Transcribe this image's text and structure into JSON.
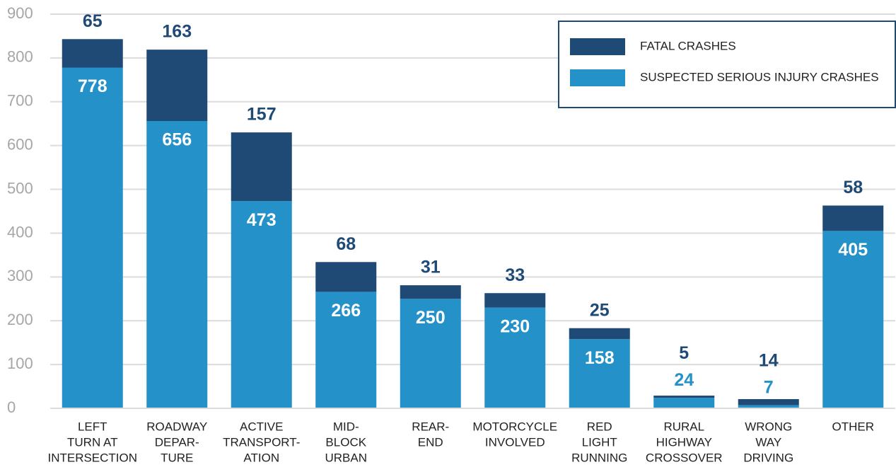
{
  "chart_data": {
    "type": "stacked_bar",
    "categories": [
      [
        "LEFT",
        "TURN AT",
        "INTERSECTION"
      ],
      [
        "ROADWAY",
        "DEPAR-",
        "TURE"
      ],
      [
        "ACTIVE",
        "TRANSPORT-",
        "ATION"
      ],
      [
        "MID-",
        "BLOCK",
        "URBAN"
      ],
      [
        "REAR-",
        "END"
      ],
      [
        "MOTORCYCLE",
        "INVOLVED"
      ],
      [
        "RED",
        "LIGHT",
        "RUNNING"
      ],
      [
        "RURAL",
        "HIGHWAY",
        "CROSSOVER"
      ],
      [
        "WRONG",
        "WAY",
        "DRIVING"
      ],
      [
        "OTHER"
      ]
    ],
    "series": [
      {
        "name": "SUSPECTED SERIOUS INJURY CRASHES",
        "color": "#2491c9",
        "values": [
          778,
          656,
          473,
          266,
          250,
          230,
          158,
          24,
          7,
          405
        ]
      },
      {
        "name": "FATAL CRASHES",
        "color": "#1f4a76",
        "values": [
          65,
          163,
          157,
          68,
          31,
          33,
          25,
          5,
          14,
          58
        ]
      }
    ],
    "ylim": [
      0,
      900
    ],
    "yticks": [
      0,
      100,
      200,
      300,
      400,
      500,
      600,
      700,
      800,
      900
    ],
    "grid": true,
    "legend": "top-right"
  }
}
